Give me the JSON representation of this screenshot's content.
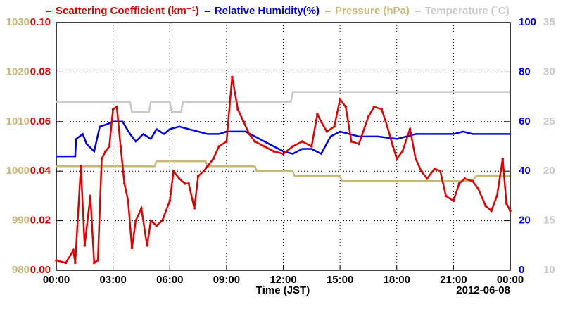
{
  "chart_data": {
    "type": "line",
    "x_label": "Time (JST)",
    "date": "2012-06-08",
    "xlim": [
      0,
      24
    ],
    "xticks": [
      {
        "value": 0,
        "label": "00:00"
      },
      {
        "value": 3,
        "label": "03:00"
      },
      {
        "value": 6,
        "label": "06:00"
      },
      {
        "value": 9,
        "label": "09:00"
      },
      {
        "value": 12,
        "label": "12:00"
      },
      {
        "value": 15,
        "label": "15:00"
      },
      {
        "value": 18,
        "label": "18:00"
      },
      {
        "value": 21,
        "label": "21:00"
      },
      {
        "value": 24,
        "label": "00:00"
      }
    ],
    "ylim": [
      0,
      0.1
    ],
    "yticks": [
      {
        "value": 0,
        "label": "0.00"
      },
      {
        "value": 0.02,
        "label": "0.02"
      },
      {
        "value": 0.04,
        "label": "0.04"
      },
      {
        "value": 0.06,
        "label": "0.06"
      },
      {
        "value": 0.08,
        "label": "0.08"
      },
      {
        "value": 0.1,
        "label": "0.10"
      }
    ],
    "y2lim": [
      0,
      100
    ],
    "y2ticks": [
      0,
      20,
      40,
      60,
      80,
      100
    ],
    "y3lim": [
      980,
      1030
    ],
    "y3ticks": [
      980,
      990,
      1000,
      1010,
      1020,
      1030
    ],
    "y4lim": [
      10,
      35
    ],
    "y4ticks": [
      10,
      15,
      20,
      25,
      30,
      35
    ],
    "grid": true,
    "series": [
      {
        "name": "Scattering Coefficient (km⁻¹)",
        "color": "#e00000",
        "axis": "y",
        "markers": true,
        "x": [
          0,
          0.5,
          0.9,
          1.0,
          1.3,
          1.5,
          1.8,
          2.0,
          2.2,
          2.4,
          2.6,
          2.8,
          3.0,
          3.2,
          3.4,
          3.6,
          3.8,
          4.0,
          4.2,
          4.5,
          4.8,
          5.0,
          5.3,
          5.6,
          6.0,
          6.2,
          6.5,
          6.8,
          7.0,
          7.3,
          7.5,
          7.8,
          8.0,
          8.3,
          8.6,
          9.0,
          9.3,
          9.6,
          9.9,
          10.2,
          10.5,
          11.0,
          11.5,
          12.0,
          12.5,
          13.0,
          13.5,
          13.8,
          14.0,
          14.3,
          14.7,
          15.0,
          15.3,
          15.6,
          16.0,
          16.5,
          16.8,
          17.2,
          17.5,
          17.8,
          18.0,
          18.3,
          18.7,
          19.0,
          19.3,
          19.6,
          20.0,
          20.3,
          20.6,
          21.0,
          21.3,
          21.6,
          22.0,
          22.3,
          22.7,
          23.0,
          23.3,
          23.6,
          23.8,
          24.0
        ],
        "values": [
          0.004,
          0.003,
          0.008,
          0.003,
          0.042,
          0.01,
          0.03,
          0.003,
          0.004,
          0.045,
          0.048,
          0.05,
          0.065,
          0.066,
          0.05,
          0.035,
          0.028,
          0.009,
          0.02,
          0.025,
          0.01,
          0.02,
          0.018,
          0.02,
          0.028,
          0.04,
          0.037,
          0.035,
          0.035,
          0.025,
          0.038,
          0.04,
          0.042,
          0.045,
          0.05,
          0.052,
          0.078,
          0.065,
          0.06,
          0.055,
          0.052,
          0.05,
          0.048,
          0.047,
          0.05,
          0.052,
          0.05,
          0.063,
          0.06,
          0.056,
          0.058,
          0.069,
          0.066,
          0.052,
          0.051,
          0.062,
          0.066,
          0.065,
          0.058,
          0.05,
          0.045,
          0.048,
          0.057,
          0.045,
          0.04,
          0.037,
          0.041,
          0.04,
          0.03,
          0.028,
          0.035,
          0.037,
          0.036,
          0.033,
          0.026,
          0.024,
          0.03,
          0.045,
          0.027,
          0.024
        ]
      },
      {
        "name": "Relative Humidity(%)",
        "color": "#0000e0",
        "axis": "y2",
        "x": [
          0,
          1.0,
          1.05,
          1.4,
          1.6,
          2.0,
          2.3,
          2.7,
          3.0,
          3.5,
          3.9,
          4.2,
          4.6,
          5.0,
          5.3,
          5.7,
          6.0,
          6.5,
          7.0,
          7.5,
          8.0,
          8.6,
          9.0,
          10.0,
          10.5,
          11.0,
          11.5,
          12.0,
          12.5,
          13.0,
          13.5,
          14.0,
          14.5,
          15.0,
          15.5,
          16.0,
          17.0,
          18.0,
          18.5,
          19.0,
          20.0,
          21.0,
          21.5,
          22.0,
          23.0,
          24.0
        ],
        "values": [
          46,
          46,
          53,
          55,
          51,
          48,
          58,
          59,
          60,
          60,
          55,
          52,
          55,
          53,
          57,
          55,
          57,
          58,
          57,
          56,
          55,
          55,
          56,
          56,
          54,
          52,
          50,
          48,
          47,
          49,
          49,
          47,
          54,
          56,
          55,
          54,
          54,
          53,
          54,
          55,
          55,
          55,
          56,
          55,
          55,
          55
        ]
      },
      {
        "name": "Pressure (hPa)",
        "color": "#c8b878",
        "axis": "y3",
        "x": [
          0,
          5.2,
          5.3,
          7.9,
          8.0,
          10.5,
          10.6,
          12.5,
          12.6,
          15.0,
          15.1,
          20.5,
          21.0,
          22.0,
          22.2,
          24.0
        ],
        "values": [
          1001,
          1001,
          1002,
          1002,
          1001,
          1001,
          1000,
          1000,
          999,
          999,
          998,
          998,
          998,
          998,
          999,
          999
        ]
      },
      {
        "name": "Temperature (˚C)",
        "color": "#c8c8c8",
        "axis": "y4",
        "x": [
          0,
          3.9,
          4.0,
          4.9,
          5.0,
          6.0,
          6.1,
          6.6,
          6.7,
          12.4,
          12.5,
          24.0
        ],
        "values": [
          27,
          27,
          26,
          26,
          27,
          27,
          26,
          26,
          27,
          27,
          28,
          28
        ]
      }
    ]
  }
}
